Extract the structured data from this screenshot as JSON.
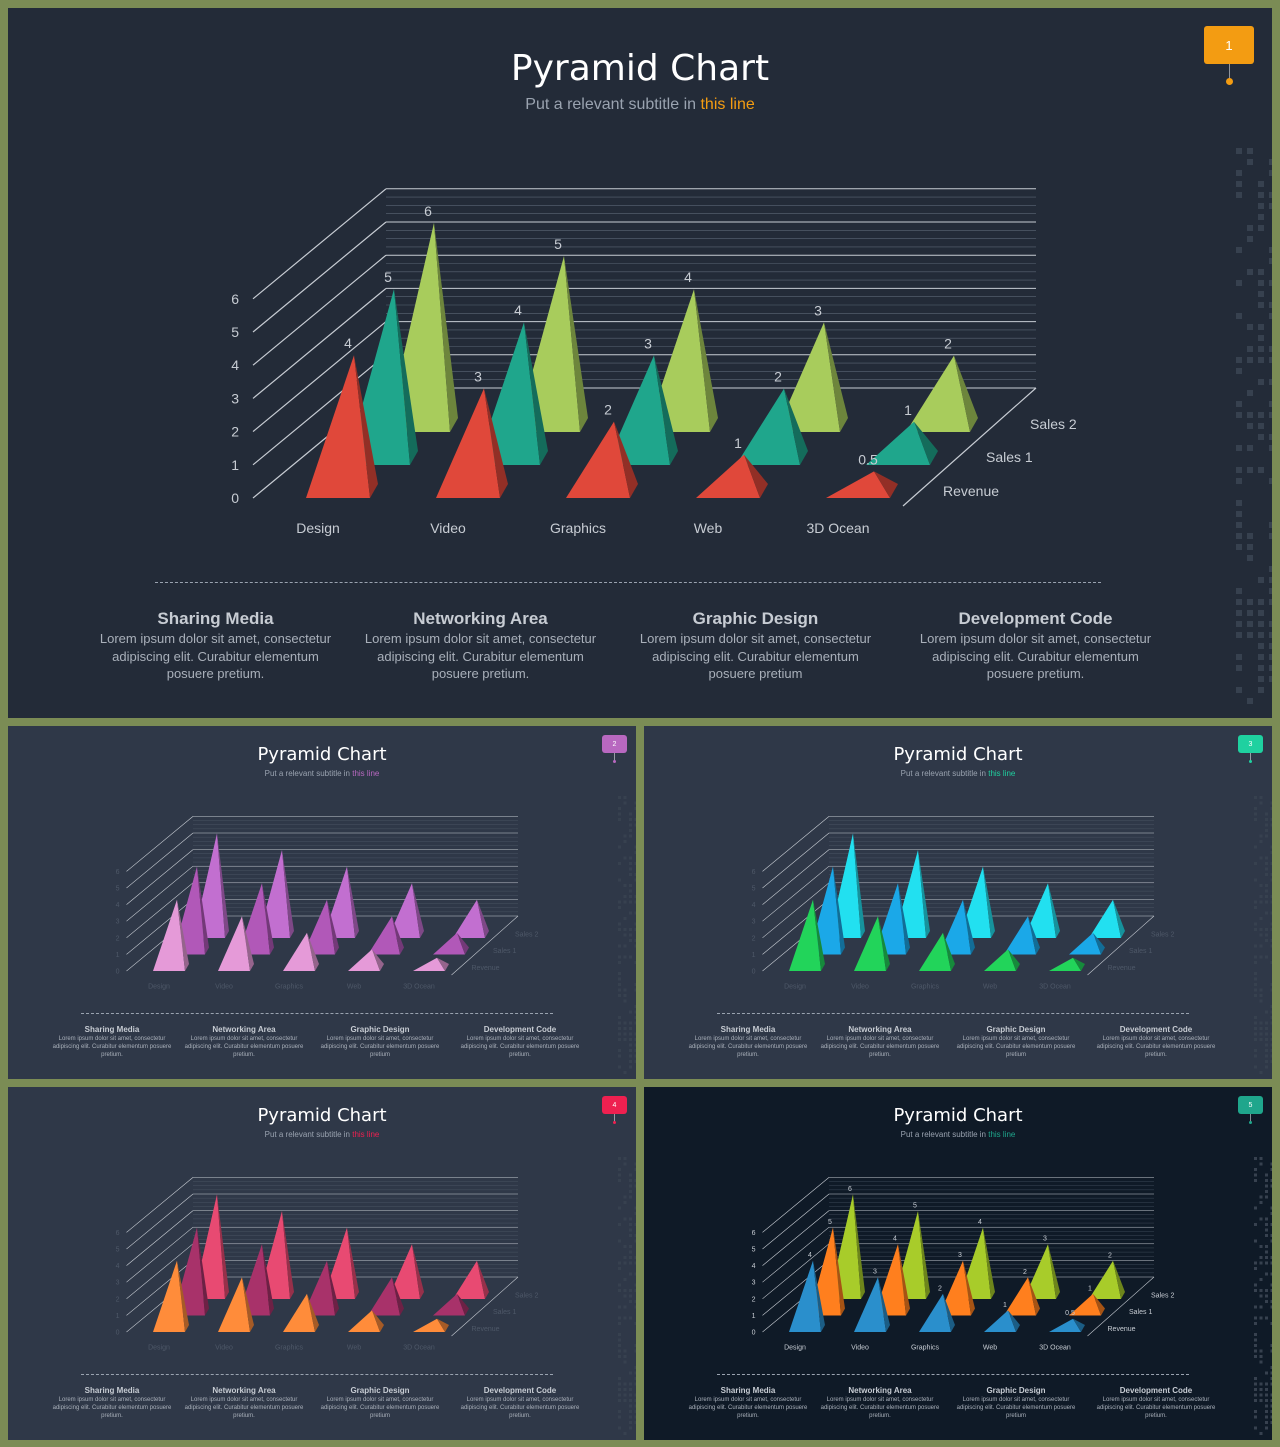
{
  "main_slide": {
    "title": "Pyramid Chart",
    "subtitle_prefix": "Put a relevant subtitle in ",
    "subtitle_highlight": "this line",
    "badge": "1",
    "accent_color": "#f39c12"
  },
  "chart_data": {
    "type": "bar",
    "bar_shape": "3d-pyramid",
    "categories": [
      "Design",
      "Video",
      "Graphics",
      "Web",
      "3D Ocean"
    ],
    "series": [
      {
        "name": "Revenue",
        "values": [
          4,
          3,
          2,
          1,
          0.5
        ]
      },
      {
        "name": "Sales 1",
        "values": [
          5,
          4,
          3,
          2,
          1
        ]
      },
      {
        "name": "Sales 2",
        "values": [
          6,
          5,
          4,
          3,
          2
        ]
      }
    ],
    "y_ticks": [
      "0",
      "1",
      "2",
      "3",
      "4",
      "5",
      "6"
    ],
    "ylim": [
      0,
      6
    ],
    "grid": true
  },
  "descriptions": [
    {
      "title": "Sharing Media",
      "text": "Lorem ipsum dolor sit amet, consectetur adipiscing elit. Curabitur elementum posuere pretium."
    },
    {
      "title": "Networking Area",
      "text": "Lorem ipsum dolor sit amet, consectetur adipiscing elit. Curabitur elementum posuere pretium."
    },
    {
      "title": "Graphic Design",
      "text": "Lorem ipsum dolor sit amet, consectetur adipiscing elit. Curabitur elementum posuere pretium"
    },
    {
      "title": "Development Code",
      "text": "Lorem ipsum dolor sit amet, consectetur adipiscing elit. Curabitur elementum posuere pretium."
    }
  ],
  "variants": [
    {
      "badge": "2",
      "accent": "#b868c0",
      "colors": [
        "#e59ad8",
        "#b158b8",
        "#c26fd0"
      ]
    },
    {
      "badge": "3",
      "accent": "#1fd1a0",
      "colors": [
        "#22d45a",
        "#1ba8e8",
        "#22e0f0"
      ]
    },
    {
      "badge": "4",
      "accent": "#ee2050",
      "colors": [
        "#ff8c3a",
        "#a8326a",
        "#e84a72"
      ]
    },
    {
      "badge": "5",
      "accent": "#1fa68c",
      "colors": [
        "#2a8fcc",
        "#ff7f1e",
        "#a8cc2a"
      ]
    }
  ],
  "main_colors": [
    "#e0483a",
    "#1fa68c",
    "#a8cc5c"
  ]
}
